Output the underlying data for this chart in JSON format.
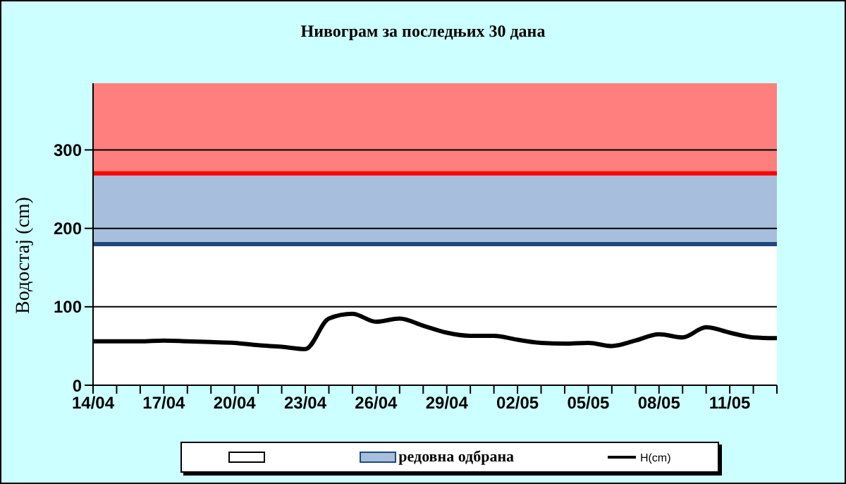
{
  "chart_data": {
    "type": "line",
    "title": "Нивограм за последњих 30 дана",
    "ylabel": "Водостај (cm)",
    "categories": [
      "14/04",
      null,
      null,
      "17/04",
      null,
      null,
      "20/04",
      null,
      null,
      "23/04",
      null,
      null,
      "26/04",
      null,
      null,
      "29/04",
      null,
      null,
      "02/05",
      null,
      null,
      "05/05",
      null,
      null,
      "08/05",
      null,
      null,
      "11/05",
      null,
      null
    ],
    "series": [
      {
        "name": "H(cm)",
        "color": "#000000",
        "values": [
          56,
          56,
          56,
          57,
          56,
          55,
          54,
          51,
          49,
          46,
          85,
          91,
          81,
          85,
          76,
          67,
          63,
          63,
          58,
          54,
          53,
          54,
          50,
          57,
          65,
          61,
          74,
          67,
          61,
          60
        ]
      }
    ],
    "ylim": [
      0,
      385
    ],
    "yticks": [
      0,
      100,
      200,
      300
    ],
    "grid": "y",
    "legend": "bottom",
    "bands": [
      {
        "axis": "y",
        "from": 0,
        "to": 180,
        "color": "#ffffff"
      },
      {
        "axis": "y",
        "from": 180,
        "to": 270,
        "label": "редовна одбрана",
        "color": "#a7bfdc"
      },
      {
        "axis": "y",
        "from": 270,
        "to": 385,
        "color": "#ff7f7f"
      }
    ],
    "ref_lines": [
      {
        "axis": "y",
        "value": 180,
        "color": "#1f497d"
      },
      {
        "axis": "y",
        "value": 270,
        "color": "#ff0000"
      }
    ]
  }
}
